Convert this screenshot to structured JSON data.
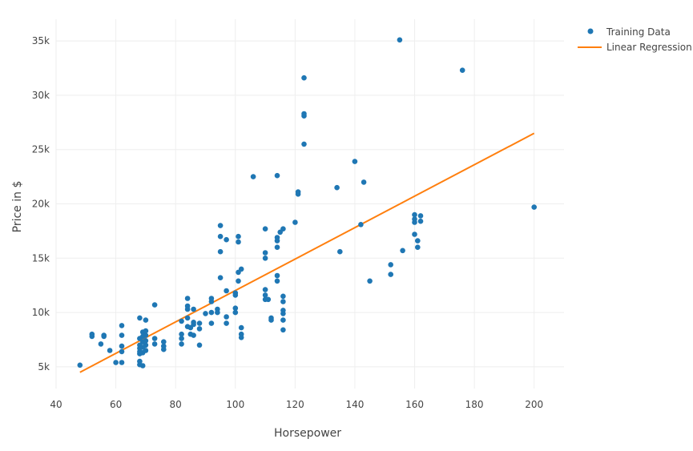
{
  "chart_data": {
    "type": "scatter",
    "title": "",
    "xlabel": "Horsepower",
    "ylabel": "Price in $",
    "xlim": [
      40,
      210
    ],
    "ylim": [
      3000,
      37000
    ],
    "xticks": [
      40,
      60,
      80,
      100,
      120,
      140,
      160,
      180,
      200
    ],
    "xtick_labels": [
      "40",
      "60",
      "80",
      "100",
      "120",
      "140",
      "160",
      "180",
      "200"
    ],
    "yticks": [
      5000,
      10000,
      15000,
      20000,
      25000,
      30000,
      35000
    ],
    "ytick_labels": [
      "5k",
      "10k",
      "15k",
      "20k",
      "25k",
      "30k",
      "35k"
    ],
    "grid": true,
    "legend_position": "top-right",
    "series": [
      {
        "name": "Training Data",
        "kind": "scatter",
        "color": "#1f77b4",
        "points": [
          [
            48,
            5150
          ],
          [
            52,
            7800
          ],
          [
            52,
            8000
          ],
          [
            55,
            7100
          ],
          [
            56,
            7800
          ],
          [
            56,
            7900
          ],
          [
            58,
            6500
          ],
          [
            60,
            5400
          ],
          [
            62,
            5400
          ],
          [
            62,
            6400
          ],
          [
            62,
            6900
          ],
          [
            62,
            7900
          ],
          [
            62,
            8800
          ],
          [
            68,
            5200
          ],
          [
            68,
            5500
          ],
          [
            68,
            6200
          ],
          [
            68,
            6400
          ],
          [
            68,
            6700
          ],
          [
            68,
            7000
          ],
          [
            68,
            7600
          ],
          [
            68,
            9500
          ],
          [
            69,
            5100
          ],
          [
            69,
            6300
          ],
          [
            69,
            6800
          ],
          [
            69,
            7300
          ],
          [
            69,
            7800
          ],
          [
            69,
            8200
          ],
          [
            70,
            6500
          ],
          [
            70,
            7000
          ],
          [
            70,
            7400
          ],
          [
            70,
            7900
          ],
          [
            70,
            8300
          ],
          [
            70,
            9300
          ],
          [
            73,
            7100
          ],
          [
            73,
            7600
          ],
          [
            73,
            10700
          ],
          [
            76,
            6600
          ],
          [
            76,
            6900
          ],
          [
            76,
            7300
          ],
          [
            82,
            7100
          ],
          [
            82,
            7600
          ],
          [
            82,
            8000
          ],
          [
            82,
            9200
          ],
          [
            84,
            8700
          ],
          [
            84,
            9500
          ],
          [
            84,
            10300
          ],
          [
            84,
            10600
          ],
          [
            84,
            11300
          ],
          [
            85,
            8000
          ],
          [
            85,
            8600
          ],
          [
            86,
            7900
          ],
          [
            86,
            8900
          ],
          [
            86,
            9100
          ],
          [
            86,
            10300
          ],
          [
            88,
            7000
          ],
          [
            88,
            8500
          ],
          [
            88,
            9000
          ],
          [
            90,
            9900
          ],
          [
            92,
            9000
          ],
          [
            92,
            10000
          ],
          [
            92,
            11000
          ],
          [
            92,
            11300
          ],
          [
            94,
            10000
          ],
          [
            94,
            10300
          ],
          [
            95,
            13200
          ],
          [
            95,
            15600
          ],
          [
            95,
            17000
          ],
          [
            95,
            18000
          ],
          [
            97,
            9000
          ],
          [
            97,
            9600
          ],
          [
            97,
            12000
          ],
          [
            97,
            16700
          ],
          [
            100,
            10000
          ],
          [
            100,
            10400
          ],
          [
            100,
            11600
          ],
          [
            100,
            11800
          ],
          [
            101,
            12900
          ],
          [
            101,
            13700
          ],
          [
            101,
            16500
          ],
          [
            101,
            17000
          ],
          [
            102,
            7700
          ],
          [
            102,
            8000
          ],
          [
            102,
            8600
          ],
          [
            102,
            14000
          ],
          [
            106,
            22500
          ],
          [
            110,
            11200
          ],
          [
            110,
            11600
          ],
          [
            110,
            12100
          ],
          [
            110,
            15000
          ],
          [
            110,
            15500
          ],
          [
            110,
            17700
          ],
          [
            111,
            11200
          ],
          [
            112,
            9300
          ],
          [
            112,
            9500
          ],
          [
            114,
            12900
          ],
          [
            114,
            13400
          ],
          [
            114,
            16000
          ],
          [
            114,
            16600
          ],
          [
            114,
            16900
          ],
          [
            114,
            22600
          ],
          [
            115,
            17400
          ],
          [
            116,
            8400
          ],
          [
            116,
            9300
          ],
          [
            116,
            9900
          ],
          [
            116,
            10200
          ],
          [
            116,
            11000
          ],
          [
            116,
            11500
          ],
          [
            116,
            17700
          ],
          [
            120,
            18300
          ],
          [
            121,
            20900
          ],
          [
            121,
            21100
          ],
          [
            123,
            25500
          ],
          [
            123,
            28100
          ],
          [
            123,
            28300
          ],
          [
            123,
            31600
          ],
          [
            134,
            21500
          ],
          [
            135,
            15600
          ],
          [
            140,
            23900
          ],
          [
            142,
            18100
          ],
          [
            143,
            22000
          ],
          [
            145,
            12900
          ],
          [
            152,
            13500
          ],
          [
            152,
            14400
          ],
          [
            155,
            35100
          ],
          [
            156,
            15700
          ],
          [
            160,
            17200
          ],
          [
            160,
            18300
          ],
          [
            160,
            18600
          ],
          [
            160,
            19000
          ],
          [
            161,
            16000
          ],
          [
            161,
            16600
          ],
          [
            162,
            18400
          ],
          [
            162,
            18900
          ],
          [
            176,
            32300
          ],
          [
            200,
            19700
          ]
        ]
      },
      {
        "name": "Linear Regression",
        "kind": "line",
        "color": "#ff7f0e",
        "points": [
          [
            48,
            4500
          ],
          [
            200,
            26500
          ]
        ]
      }
    ]
  }
}
